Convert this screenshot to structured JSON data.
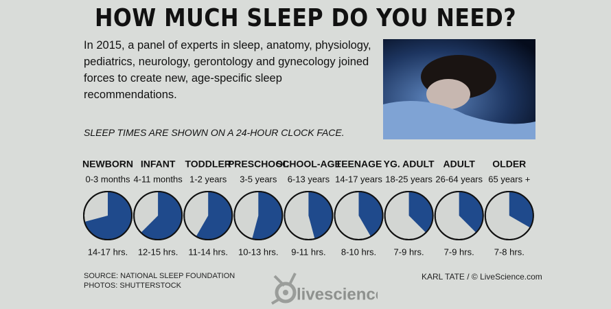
{
  "title": "HOW MUCH SLEEP DO YOU NEED?",
  "intro": "In 2015, a panel of experts in sleep, anatomy, physiology, pediatrics, neurology, gerontology and gynecology joined forces to create new, age-specific sleep recommendations.",
  "note": "SLEEP TIMES ARE SHOWN ON A 24-HOUR CLOCK FACE.",
  "chart_data": {
    "type": "clock",
    "categories": [
      "NEWBORN",
      "INFANT",
      "TODDLER",
      "PRESCHOOL",
      "SCHOOL-AGE",
      "TEENAGE",
      "YG. ADULT",
      "ADULT",
      "OLDER"
    ],
    "ages": [
      "0-3 months",
      "4-11 months",
      "1-2 years",
      "3-5 years",
      "6-13 years",
      "14-17 years",
      "18-25 years",
      "26-64 years",
      "65 years +"
    ],
    "ranges": [
      "14-17 hrs.",
      "12-15 hrs.",
      "11-14 hrs.",
      "10-13 hrs.",
      "9-11 hrs.",
      "8-10 hrs.",
      "7-9 hrs.",
      "7-9 hrs.",
      "7-8 hrs."
    ],
    "values": [
      17,
      15,
      14,
      13,
      11,
      10,
      9,
      9,
      8
    ],
    "ylim": [
      0,
      24
    ],
    "color": "#1f4a8c"
  },
  "source": [
    "SOURCE: NATIONAL SLEEP FOUNDATION",
    "PHOTOS: SHUTTERSTOCK"
  ],
  "credit": "KARL TATE / © LiveScience.com",
  "logo": "livescience"
}
